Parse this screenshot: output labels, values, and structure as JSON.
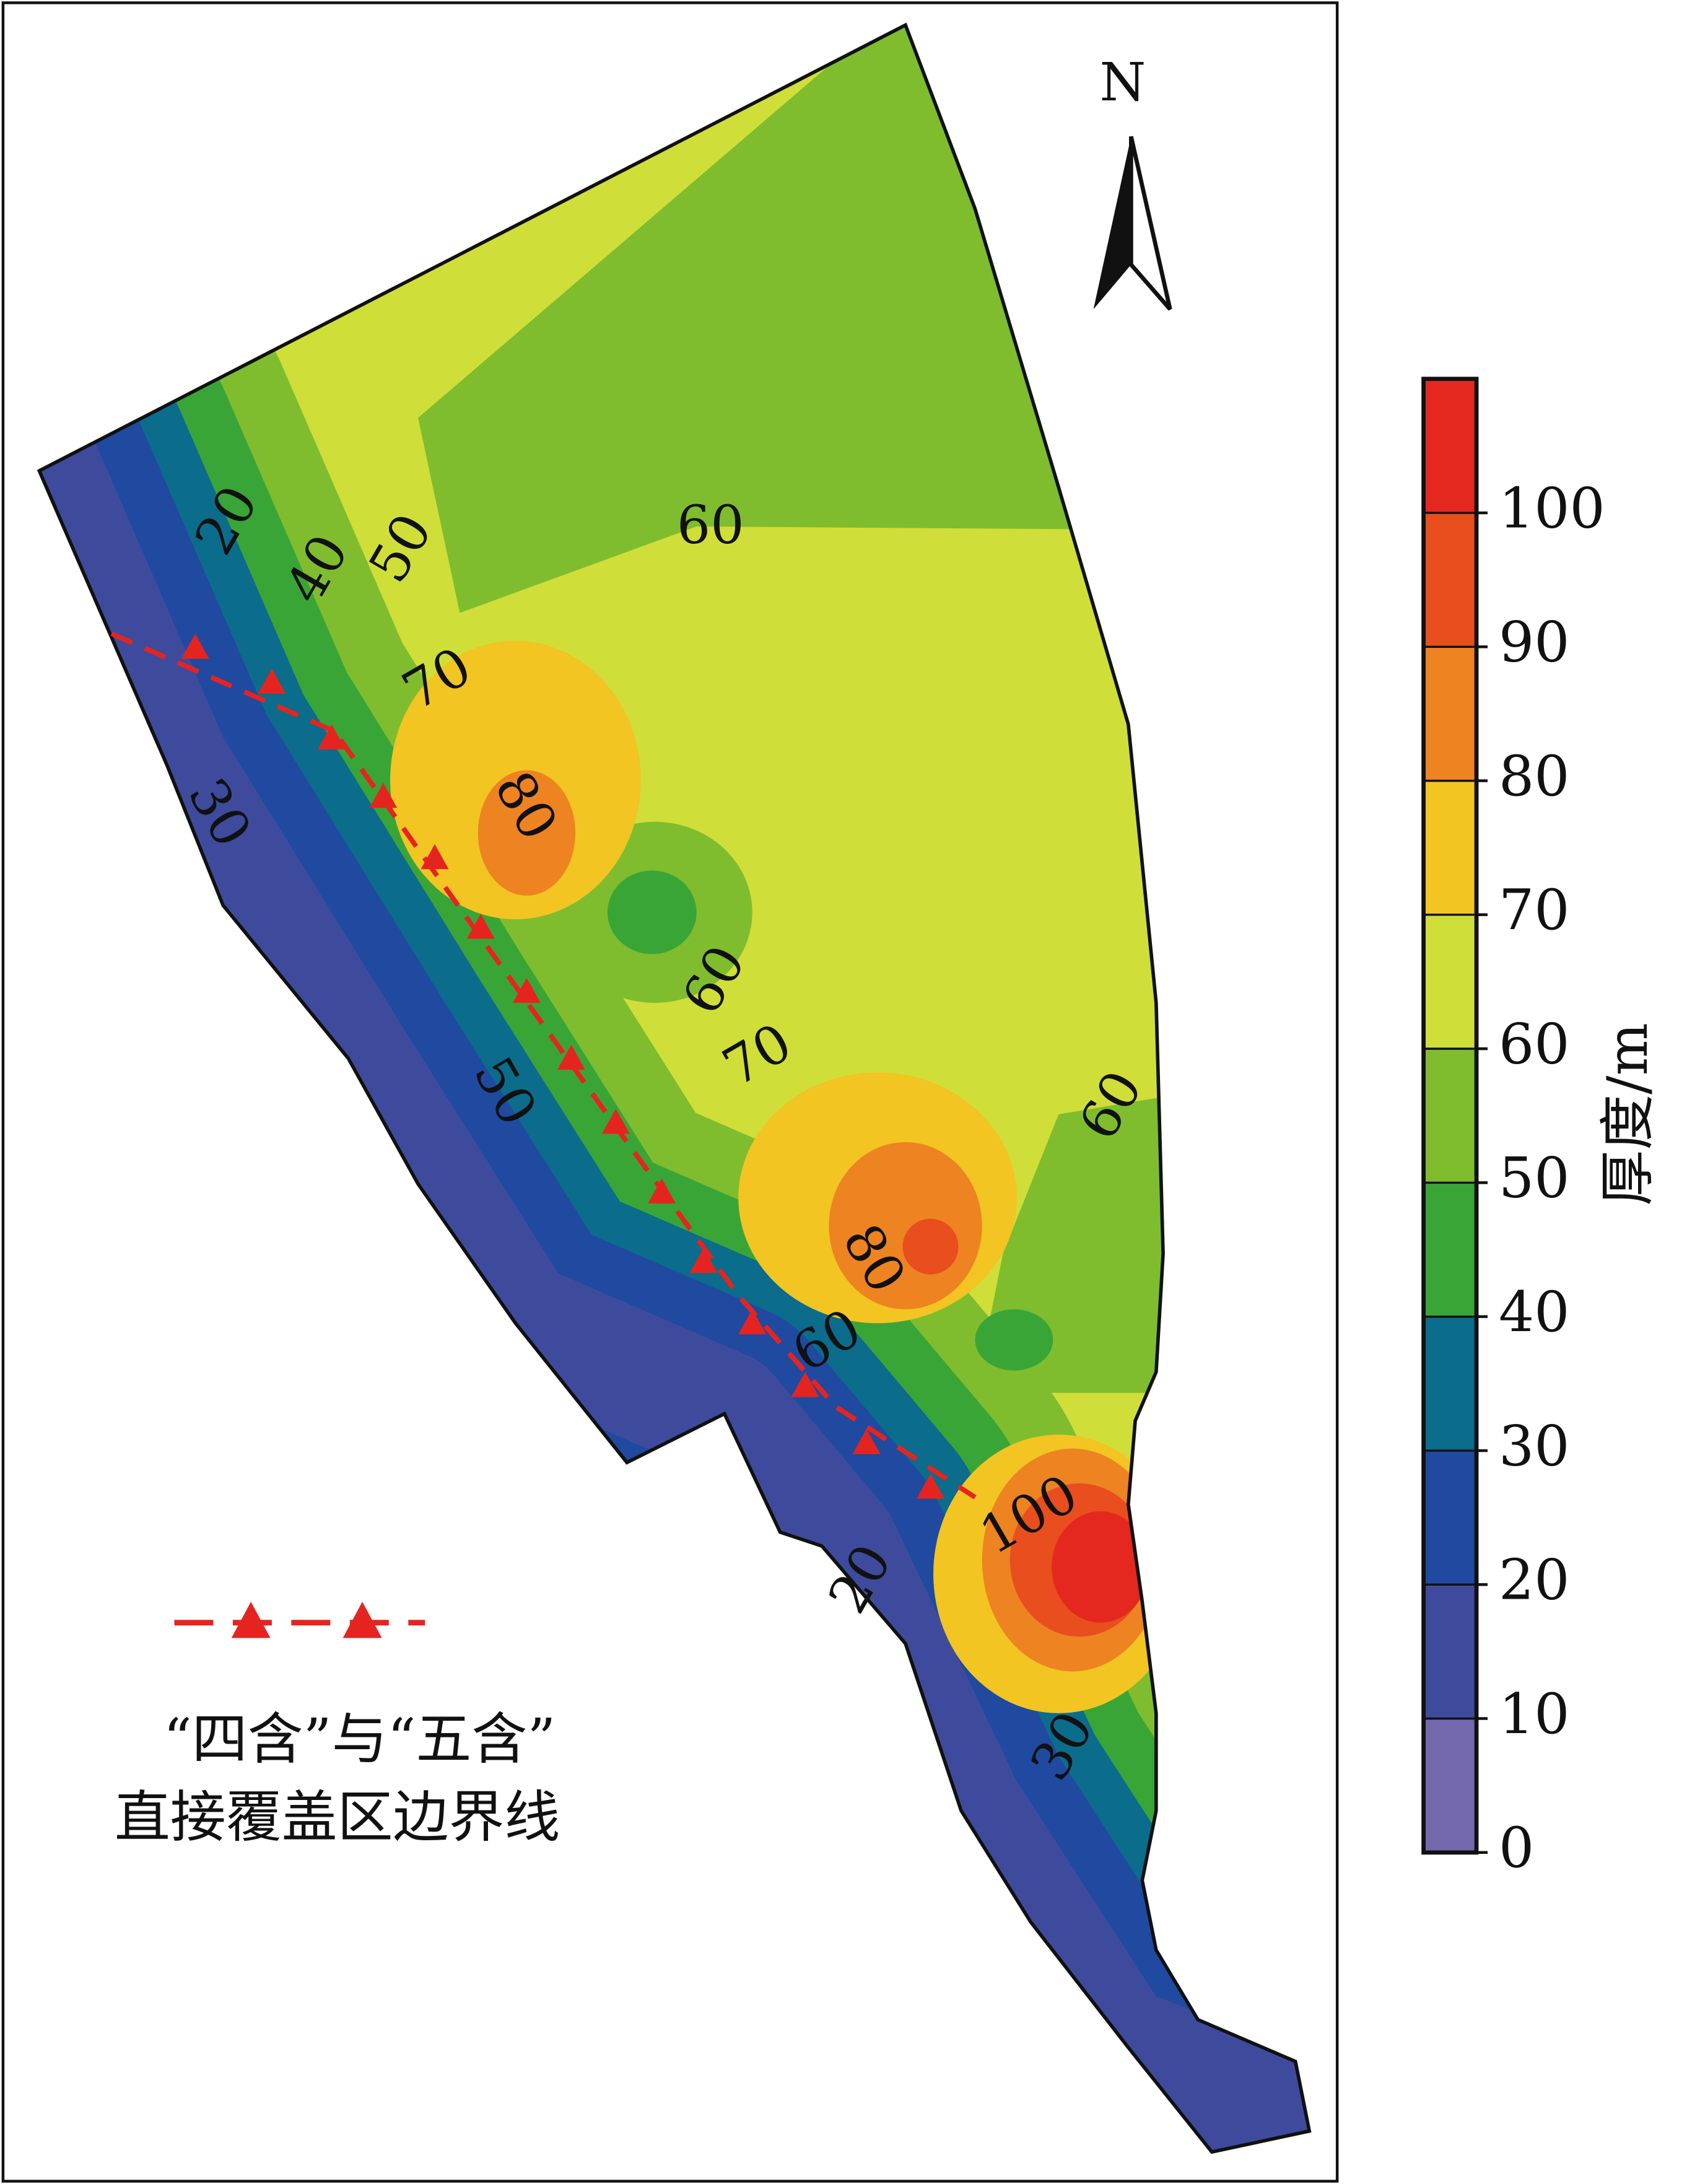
{
  "map": {
    "north": "N",
    "contour_labels": [
      20,
      40,
      50,
      60,
      70,
      80,
      30,
      60,
      50,
      70,
      60,
      80,
      60,
      100,
      20,
      30
    ],
    "colorbar": {
      "title": "厚度/m",
      "lim": [
        0,
        110
      ],
      "ticks": [
        0,
        10,
        20,
        30,
        40,
        50,
        60,
        70,
        80,
        90,
        100
      ],
      "colors": [
        "#7468ad",
        "#3e4b9d",
        "#1f4aa0",
        "#0b6c8c",
        "#3aa537",
        "#7fbd2f",
        "#d0de3a",
        "#f2c522",
        "#ee8322",
        "#e94e1f",
        "#e4281f"
      ]
    },
    "legend": {
      "line1": "“四含”与“五含”",
      "line2": "直接覆盖区边界线"
    }
  }
}
